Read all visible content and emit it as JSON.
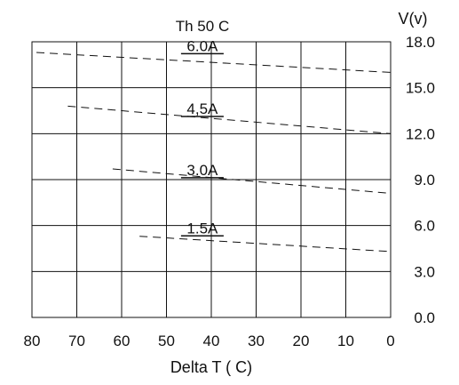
{
  "chart_data": {
    "type": "line",
    "title": "Th   50 C",
    "xlabel": "Delta  T ( C)",
    "ylabel": "V(v)",
    "xlim": [
      80,
      0
    ],
    "ylim": [
      0,
      18
    ],
    "x_ticks": [
      "80",
      "70",
      "60",
      "50",
      "40",
      "30",
      "20",
      "10",
      "0"
    ],
    "y_ticks": [
      "0.0",
      "3.0",
      "6.0",
      "9.0",
      "12.0",
      "15.0",
      "18.0"
    ],
    "x_tick_values": [
      80,
      70,
      60,
      50,
      40,
      30,
      20,
      10,
      0
    ],
    "y_tick_values": [
      0,
      3,
      6,
      9,
      12,
      15,
      18
    ],
    "grid": true,
    "series": [
      {
        "name": "6.0A",
        "x": [
          79,
          0
        ],
        "y": [
          17.3,
          16.0
        ],
        "label_at": [
          42,
          17.4
        ]
      },
      {
        "name": "4,5A",
        "x": [
          72,
          0
        ],
        "y": [
          13.8,
          12.0
        ],
        "label_at": [
          42,
          13.3
        ]
      },
      {
        "name": "3.0A",
        "x": [
          62,
          0
        ],
        "y": [
          9.7,
          8.1
        ],
        "label_at": [
          42,
          9.3
        ]
      },
      {
        "name": "1.5A",
        "x": [
          56,
          0
        ],
        "y": [
          5.3,
          4.3
        ],
        "label_at": [
          42,
          5.5
        ]
      }
    ]
  }
}
